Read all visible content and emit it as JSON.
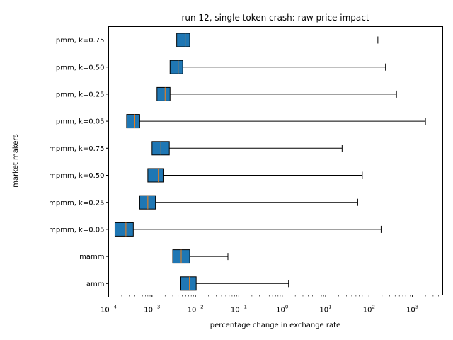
{
  "chart_data": {
    "type": "boxplot",
    "orientation": "horizontal",
    "title": "run 12, single token crash: raw price impact",
    "xlabel": "percentage change in exchange rate",
    "ylabel": "market makers",
    "xscale": "log",
    "xlim": [
      0.0001,
      5000
    ],
    "xticks": [
      {
        "value": 0.0001,
        "base": "10",
        "exp": "−4"
      },
      {
        "value": 0.001,
        "base": "10",
        "exp": "−3"
      },
      {
        "value": 0.01,
        "base": "10",
        "exp": "−2"
      },
      {
        "value": 0.1,
        "base": "10",
        "exp": "−1"
      },
      {
        "value": 1,
        "base": "10",
        "exp": "0"
      },
      {
        "value": 10,
        "base": "10",
        "exp": "1"
      },
      {
        "value": 100,
        "base": "10",
        "exp": "2"
      },
      {
        "value": 1000,
        "base": "10",
        "exp": "3"
      }
    ],
    "grid": false,
    "box_color": "#1f77b4",
    "median_color": "#ff7f0e",
    "categories": [
      {
        "label": "pmm, k=0.75",
        "min": 0.0037,
        "q1": 0.0037,
        "median": 0.0058,
        "q3": 0.0074,
        "max": 160
      },
      {
        "label": "pmm, k=0.50",
        "min": 0.0026,
        "q1": 0.0026,
        "median": 0.004,
        "q3": 0.0051,
        "max": 240
      },
      {
        "label": "pmm, k=0.25",
        "min": 0.0013,
        "q1": 0.0013,
        "median": 0.002,
        "q3": 0.0026,
        "max": 430
      },
      {
        "label": "pmm, k=0.05",
        "min": 0.00026,
        "q1": 0.00026,
        "median": 0.0004,
        "q3": 0.00052,
        "max": 2000
      },
      {
        "label": "mpmm, k=0.75",
        "min": 0.001,
        "q1": 0.001,
        "median": 0.0016,
        "q3": 0.0025,
        "max": 24
      },
      {
        "label": "mpmm, k=0.50",
        "min": 0.0008,
        "q1": 0.0008,
        "median": 0.0014,
        "q3": 0.0018,
        "max": 70
      },
      {
        "label": "mpmm, k=0.25",
        "min": 0.00052,
        "q1": 0.00052,
        "median": 0.0008,
        "q3": 0.0012,
        "max": 55
      },
      {
        "label": "mpmm, k=0.05",
        "min": 0.00014,
        "q1": 0.00014,
        "median": 0.00025,
        "q3": 0.00037,
        "max": 190
      },
      {
        "label": "mamm",
        "min": 0.003,
        "q1": 0.003,
        "median": 0.0047,
        "q3": 0.0074,
        "max": 0.056
      },
      {
        "label": "amm",
        "min": 0.0046,
        "q1": 0.0046,
        "median": 0.0073,
        "q3": 0.0104,
        "max": 1.4
      }
    ]
  }
}
